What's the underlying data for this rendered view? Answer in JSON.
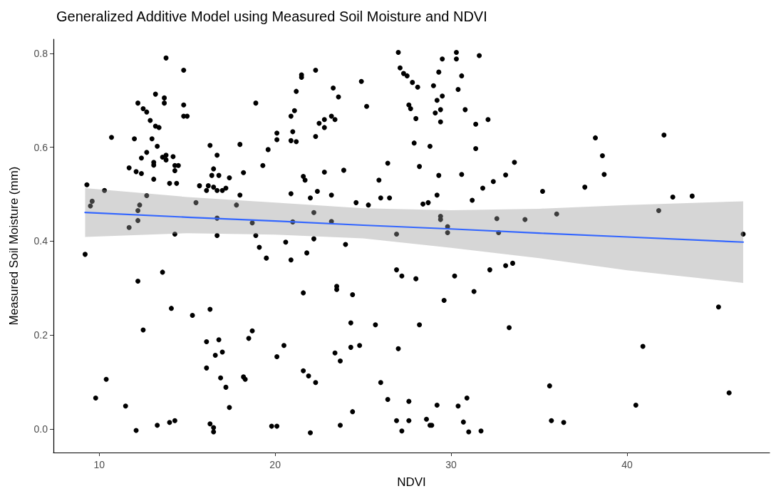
{
  "chart_data": {
    "type": "scatter",
    "title": "Generalized Additive Model using Measured Soil Moisture and NDVI",
    "xlabel": "NDVI",
    "ylabel": "Measured Soil Moisture (mm)",
    "xlim": [
      7.4,
      48.1
    ],
    "xticks": [
      10,
      20,
      30,
      40
    ],
    "ylim": [
      -0.05,
      0.83
    ],
    "yticks": [
      {
        "value": 0,
        "label": "0.0"
      },
      0.2,
      0.4,
      0.6,
      0.8
    ],
    "grid": false,
    "marker": "circle",
    "series": [
      {
        "color": "#000000",
        "x": [
          13.8,
          14.8,
          13.2,
          13.7,
          13.7,
          14.8,
          14.8,
          15.0,
          12.2,
          12.5,
          12.7,
          12.9,
          13.2,
          13.4,
          10.7,
          12.0,
          13.0,
          13.3,
          12.7,
          12.4,
          13.6,
          13.8,
          13.8,
          14.2,
          13.1,
          13.1,
          14.3,
          14.5,
          14.3,
          11.7,
          12.1,
          12.4,
          13.1,
          14.0,
          14.4,
          9.3,
          10.3,
          9.6,
          9.5,
          12.7,
          12.3,
          12.2,
          12.2,
          11.7,
          14.3,
          9.2,
          13.6,
          12.2,
          14.1,
          15.3,
          16.3,
          12.5,
          10.4,
          9.8,
          11.5,
          12.1,
          13.3,
          14.0,
          14.3,
          18.9,
          20.1,
          20.1,
          19.6,
          18.0,
          16.3,
          16.7,
          19.3,
          18.2,
          16.5,
          16.4,
          16.8,
          17.4,
          15.7,
          16.1,
          16.2,
          16.5,
          16.7,
          17.0,
          17.2,
          18.0,
          15.5,
          17.8,
          16.7,
          18.7,
          16.7,
          18.9,
          19.1,
          19.5,
          20.6,
          16.1,
          16.8,
          18.7,
          18.5,
          16.6,
          17.0,
          20.5,
          20.1,
          16.1,
          16.9,
          17.2,
          18.2,
          18.3,
          17.4,
          16.3,
          16.5,
          16.5,
          19.8,
          20.1,
          27.0,
          30.3,
          29.5,
          30.3,
          31.6,
          22.3,
          21.5,
          21.5,
          24.9,
          27.1,
          27.3,
          27.5,
          27.8,
          28.1,
          29.0,
          29.3,
          30.6,
          30.4,
          29.5,
          29.2,
          23.3,
          23.6,
          21.2,
          25.2,
          27.6,
          27.7,
          29.4,
          29.1,
          30.8,
          29.4,
          28.0,
          31.4,
          32.1,
          21.1,
          20.9,
          21.0,
          20.9,
          21.2,
          22.3,
          22.5,
          22.8,
          23.2,
          23.4,
          22.8,
          27.9,
          28.8,
          31.4,
          33.6,
          26.4,
          28.2,
          23.9,
          22.8,
          21.6,
          21.7,
          25.9,
          29.3,
          30.6,
          33.1,
          32.4,
          31.8,
          20.9,
          22.4,
          22.0,
          23.2,
          24.6,
          25.3,
          26.0,
          26.5,
          28.4,
          28.7,
          29.2,
          31.2,
          22.2,
          21.0,
          23.2,
          29.4,
          29.4,
          29.8,
          29.8,
          32.6,
          32.7,
          26.9,
          22.2,
          24.0,
          21.8,
          20.9,
          26.9,
          27.2,
          28.0,
          30.2,
          32.2,
          33.1,
          33.5,
          21.6,
          23.5,
          23.5,
          24.4,
          29.6,
          31.3,
          24.3,
          25.7,
          28.2,
          33.3,
          23.4,
          23.7,
          24.3,
          24.8,
          27.0,
          21.6,
          21.9,
          22.3,
          26.0,
          26.4,
          27.6,
          29.2,
          30.4,
          30.9,
          24.4,
          23.7,
          22.0,
          26.9,
          27.6,
          27.2,
          28.6,
          28.8,
          28.9,
          30.7,
          31.0,
          31.7,
          38.2,
          42.1,
          38.6,
          38.7,
          35.2,
          37.6,
          42.6,
          43.7,
          34.2,
          36.0,
          41.8,
          46.6,
          45.2,
          40.9,
          35.6,
          45.8,
          40.5,
          35.7,
          36.4
        ],
        "values": [
          0.79,
          0.764,
          0.713,
          0.705,
          0.694,
          0.69,
          0.666,
          0.666,
          0.694,
          0.682,
          0.675,
          0.657,
          0.645,
          0.642,
          0.621,
          0.618,
          0.618,
          0.602,
          0.589,
          0.577,
          0.579,
          0.583,
          0.573,
          0.58,
          0.568,
          0.562,
          0.561,
          0.561,
          0.55,
          0.556,
          0.548,
          0.544,
          0.532,
          0.523,
          0.523,
          0.52,
          0.508,
          0.485,
          0.475,
          0.497,
          0.477,
          0.465,
          0.444,
          0.429,
          0.415,
          0.372,
          0.334,
          0.315,
          0.257,
          0.242,
          0.255,
          0.211,
          0.106,
          0.066,
          0.049,
          -0.003,
          0.008,
          0.014,
          0.018,
          0.694,
          0.63,
          0.616,
          0.595,
          0.606,
          0.604,
          0.583,
          0.561,
          0.546,
          0.554,
          0.54,
          0.54,
          0.535,
          0.518,
          0.508,
          0.518,
          0.515,
          0.508,
          0.508,
          0.513,
          0.498,
          0.482,
          0.477,
          0.449,
          0.439,
          0.412,
          0.412,
          0.387,
          0.364,
          0.398,
          0.186,
          0.19,
          0.209,
          0.193,
          0.157,
          0.164,
          0.178,
          0.154,
          0.13,
          0.109,
          0.089,
          0.111,
          0.106,
          0.046,
          0.011,
          0.003,
          -0.006,
          0.006,
          0.006,
          0.802,
          0.802,
          0.788,
          0.788,
          0.795,
          0.764,
          0.754,
          0.749,
          0.74,
          0.769,
          0.757,
          0.752,
          0.738,
          0.728,
          0.731,
          0.76,
          0.752,
          0.723,
          0.709,
          0.7,
          0.726,
          0.707,
          0.719,
          0.687,
          0.69,
          0.682,
          0.68,
          0.673,
          0.68,
          0.654,
          0.661,
          0.649,
          0.659,
          0.678,
          0.666,
          0.633,
          0.614,
          0.612,
          0.623,
          0.651,
          0.659,
          0.666,
          0.659,
          0.642,
          0.609,
          0.602,
          0.597,
          0.568,
          0.566,
          0.559,
          0.551,
          0.547,
          0.538,
          0.53,
          0.53,
          0.54,
          0.542,
          0.541,
          0.527,
          0.513,
          0.501,
          0.506,
          0.492,
          0.498,
          0.482,
          0.477,
          0.492,
          0.492,
          0.479,
          0.482,
          0.498,
          0.487,
          0.461,
          0.441,
          0.442,
          0.453,
          0.446,
          0.431,
          0.418,
          0.448,
          0.418,
          0.415,
          0.405,
          0.393,
          0.375,
          0.36,
          0.339,
          0.326,
          0.32,
          0.326,
          0.339,
          0.348,
          0.353,
          0.29,
          0.304,
          0.297,
          0.286,
          0.274,
          0.293,
          0.226,
          0.222,
          0.222,
          0.216,
          0.162,
          0.145,
          0.174,
          0.178,
          0.171,
          0.124,
          0.113,
          0.099,
          0.099,
          0.063,
          0.059,
          0.051,
          0.049,
          0.066,
          0.037,
          0.008,
          -0.008,
          0.018,
          0.018,
          -0.004,
          0.021,
          0.008,
          0.008,
          0.015,
          -0.006,
          -0.004,
          0.62,
          0.626,
          0.582,
          0.542,
          0.506,
          0.515,
          0.494,
          0.496,
          0.446,
          0.458,
          0.465,
          0.415,
          0.26,
          0.176,
          0.092,
          0.077,
          0.051,
          0.018,
          0.014
        ]
      },
      {
        "type": "line",
        "color": "#3366ff",
        "marker": "none",
        "x": [
          9.2,
          15,
          20,
          25,
          30,
          35,
          40,
          46.6
        ],
        "values": [
          0.461,
          0.451,
          0.443,
          0.434,
          0.426,
          0.417,
          0.409,
          0.398
        ],
        "lower": [
          0.409,
          0.417,
          0.414,
          0.406,
          0.386,
          0.364,
          0.338,
          0.311
        ],
        "upper": [
          0.513,
          0.494,
          0.482,
          0.47,
          0.466,
          0.469,
          0.477,
          0.485
        ]
      }
    ]
  }
}
